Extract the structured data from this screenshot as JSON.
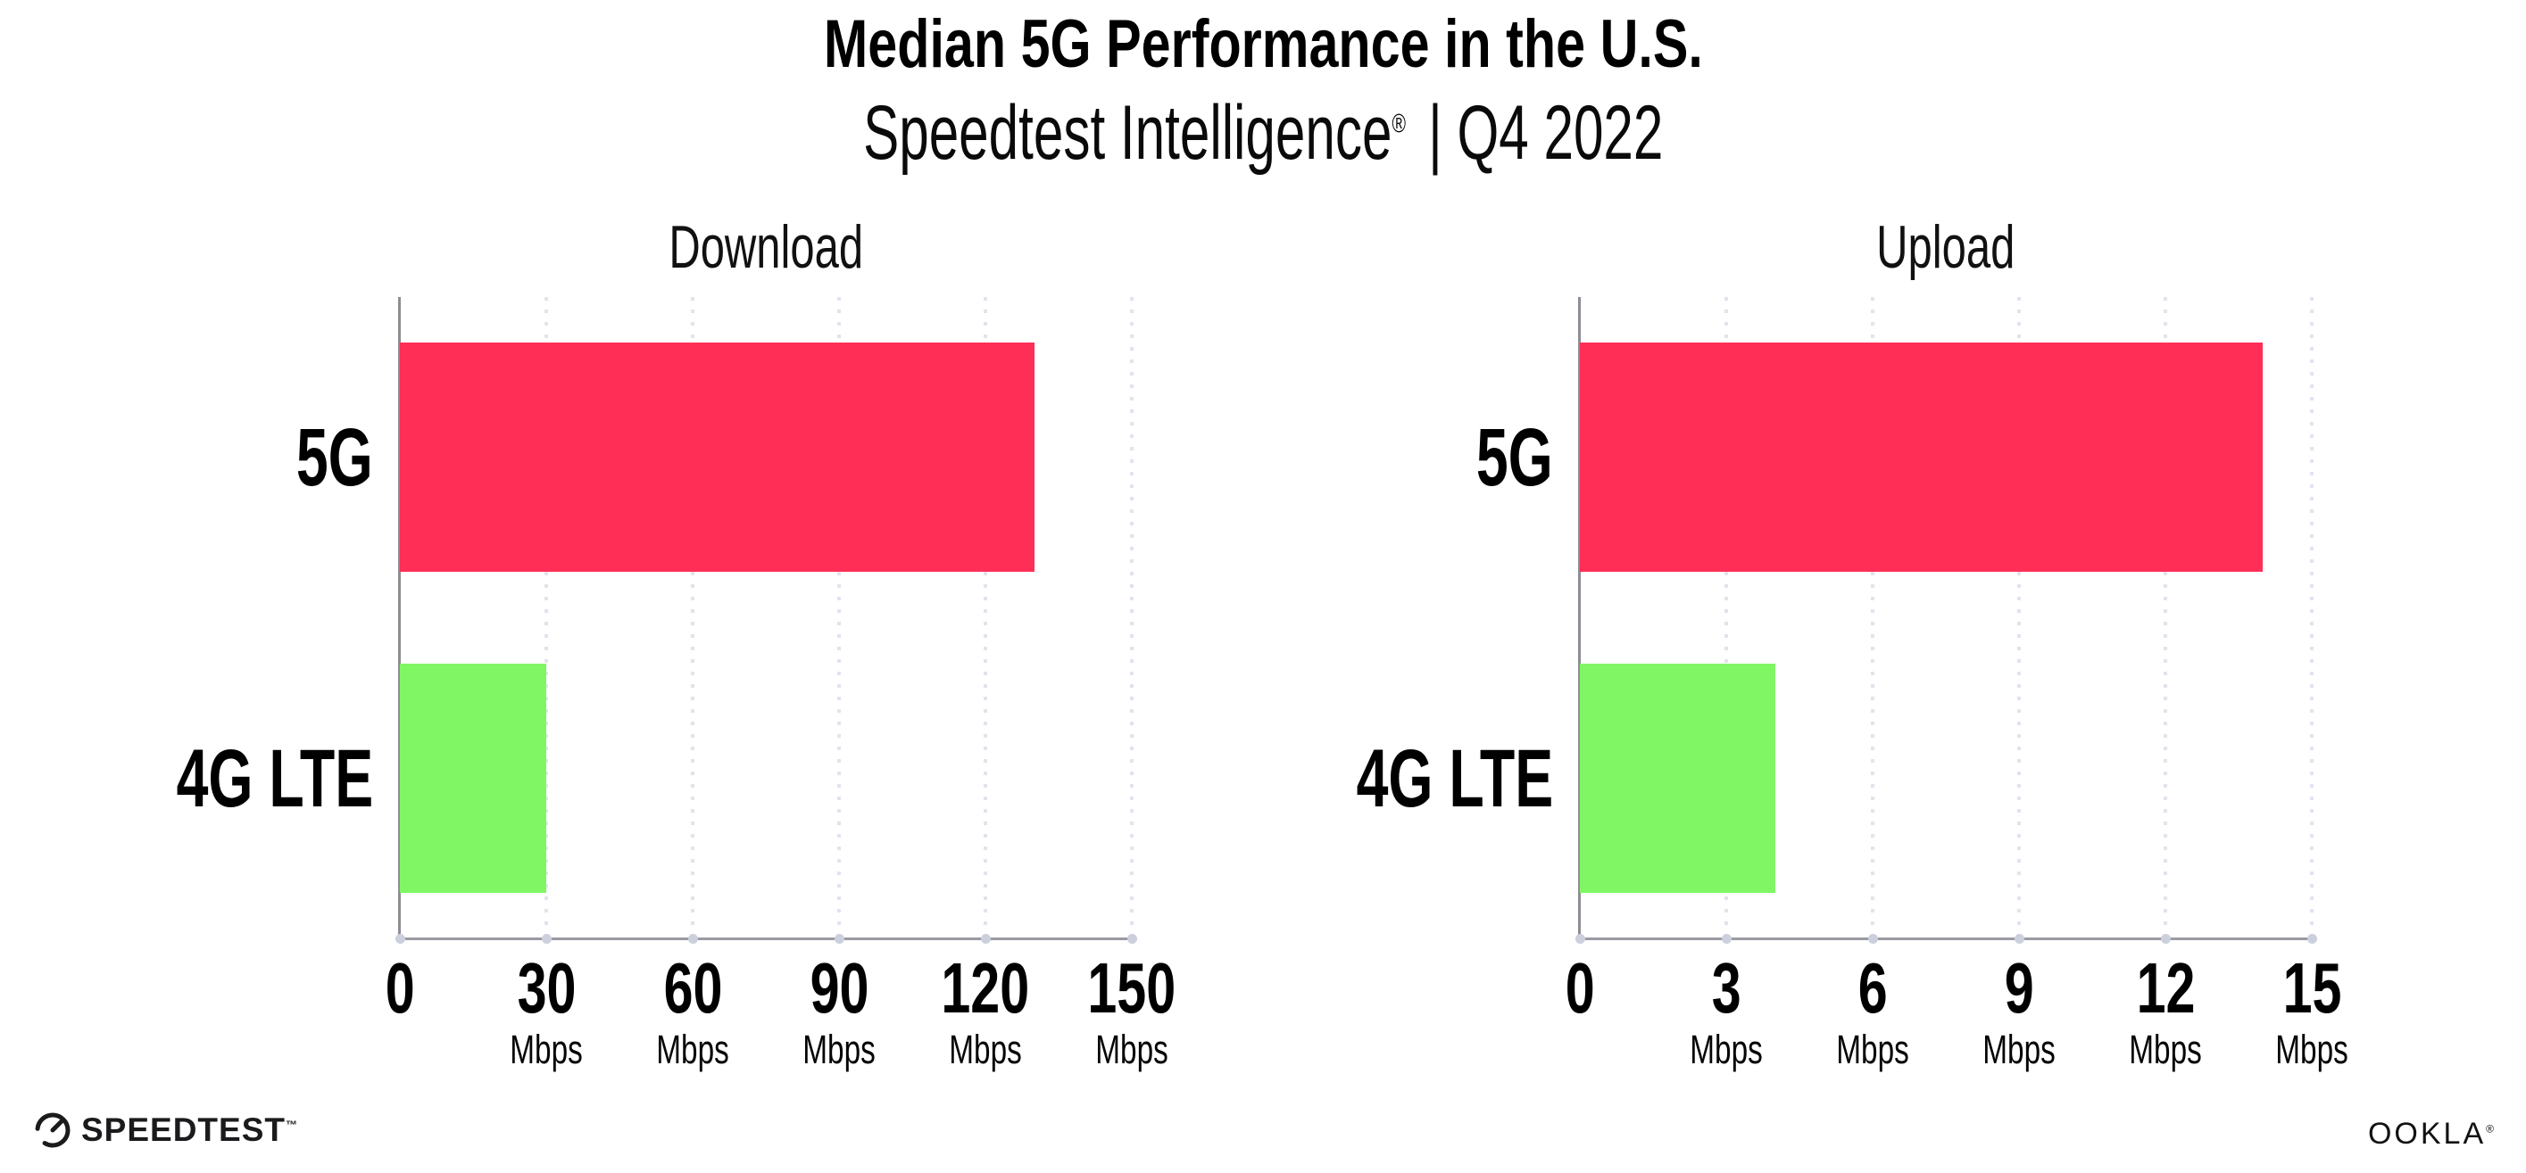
{
  "header": {
    "title": "Median 5G Performance in the U.S.",
    "subtitle": {
      "brand": "Speedtest Intelligence",
      "registered": "®",
      "rest": "| Q4 2022"
    }
  },
  "chart_data": [
    {
      "type": "bar",
      "orientation": "horizontal",
      "title": "Download",
      "categories": [
        "5G",
        "4G LTE"
      ],
      "values": [
        130,
        30
      ],
      "unit": "Mbps",
      "xlim": [
        0,
        150
      ],
      "xticks": [
        0,
        30,
        60,
        90,
        120,
        150
      ],
      "bar_colors": [
        "#ff2e57",
        "#80f664"
      ],
      "grid": "dotted-vertical",
      "legend": "none"
    },
    {
      "type": "bar",
      "orientation": "horizontal",
      "title": "Upload",
      "categories": [
        "5G",
        "4G LTE"
      ],
      "values": [
        14,
        4
      ],
      "unit": "Mbps",
      "xlim": [
        0,
        15
      ],
      "xticks": [
        0,
        3,
        6,
        9,
        12,
        15
      ],
      "bar_colors": [
        "#ff2e57",
        "#80f664"
      ],
      "grid": "dotted-vertical",
      "legend": "none"
    }
  ],
  "colors": {
    "bar_5g": "#ff2e57",
    "bar_4g_lte": "#80f664",
    "axis_line": "#9a9aa2",
    "gridline_dots": "#e3e3ee",
    "tick_dots": "#ccd0dd",
    "text": "#000000"
  },
  "footer": {
    "speedtest_text": "SPEEDTEST",
    "speedtest_tm": "™",
    "ookla_text": "OOKLA",
    "ookla_reg": "®"
  }
}
